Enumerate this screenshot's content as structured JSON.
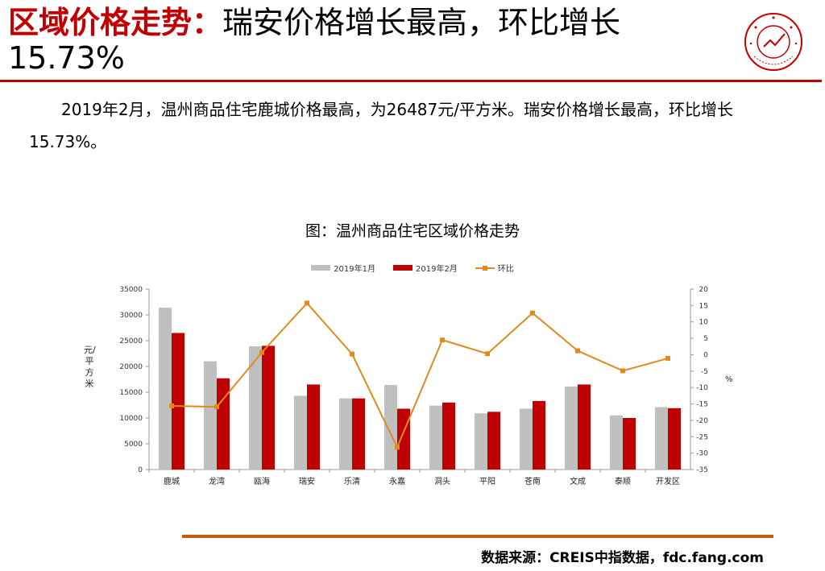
{
  "header": {
    "title_highlight": "区域价格走势：",
    "title_rest": "瑞安价格增长最高，环比增长15.73%"
  },
  "description": "2019年2月，温州商品住宅鹿城价格最高，为26487元/平方米。瑞安价格增长最高，环比增长15.73%。",
  "footer": {
    "source": "数据来源：CREIS中指数据，fdc.fang.com"
  },
  "colors": {
    "accent": "#c00000",
    "bar_jan": "#bfbfbf",
    "bar_feb": "#c00000",
    "line": "#e08a1e",
    "rule_bottom": "#c55a11"
  },
  "chart_data": {
    "type": "bar",
    "title": "图：温州商品住宅区域价格走势",
    "categories": [
      "鹿城",
      "龙湾",
      "瓯海",
      "瑞安",
      "乐清",
      "永嘉",
      "洞头",
      "平阳",
      "苍南",
      "文成",
      "泰顺",
      "开发区"
    ],
    "ylabel": "元/平方米",
    "y2label": "%",
    "ylim": [
      0,
      35000
    ],
    "yticks": [
      0,
      5000,
      10000,
      15000,
      20000,
      25000,
      30000,
      35000
    ],
    "y2lim": [
      -35,
      20
    ],
    "y2ticks": [
      20,
      15,
      10,
      5,
      0,
      -5,
      -10,
      -15,
      -20,
      -25,
      -30,
      -35
    ],
    "legend_position": "top",
    "grid": false,
    "series": [
      {
        "name": "2019年1月",
        "type": "bar",
        "axis": "left",
        "values": [
          31400,
          21000,
          23900,
          14300,
          13800,
          16400,
          12400,
          10900,
          11800,
          16100,
          10500,
          12100
        ]
      },
      {
        "name": "2019年2月",
        "type": "bar",
        "axis": "left",
        "values": [
          26487,
          17700,
          24000,
          16500,
          13800,
          11800,
          13000,
          11200,
          13300,
          16500,
          10000,
          11900
        ]
      },
      {
        "name": "环比",
        "type": "line",
        "axis": "right",
        "values": [
          -15.6,
          -15.9,
          0.7,
          15.73,
          0.2,
          -28.2,
          4.5,
          0.3,
          12.7,
          1.2,
          -4.9,
          -1.1
        ]
      }
    ]
  }
}
